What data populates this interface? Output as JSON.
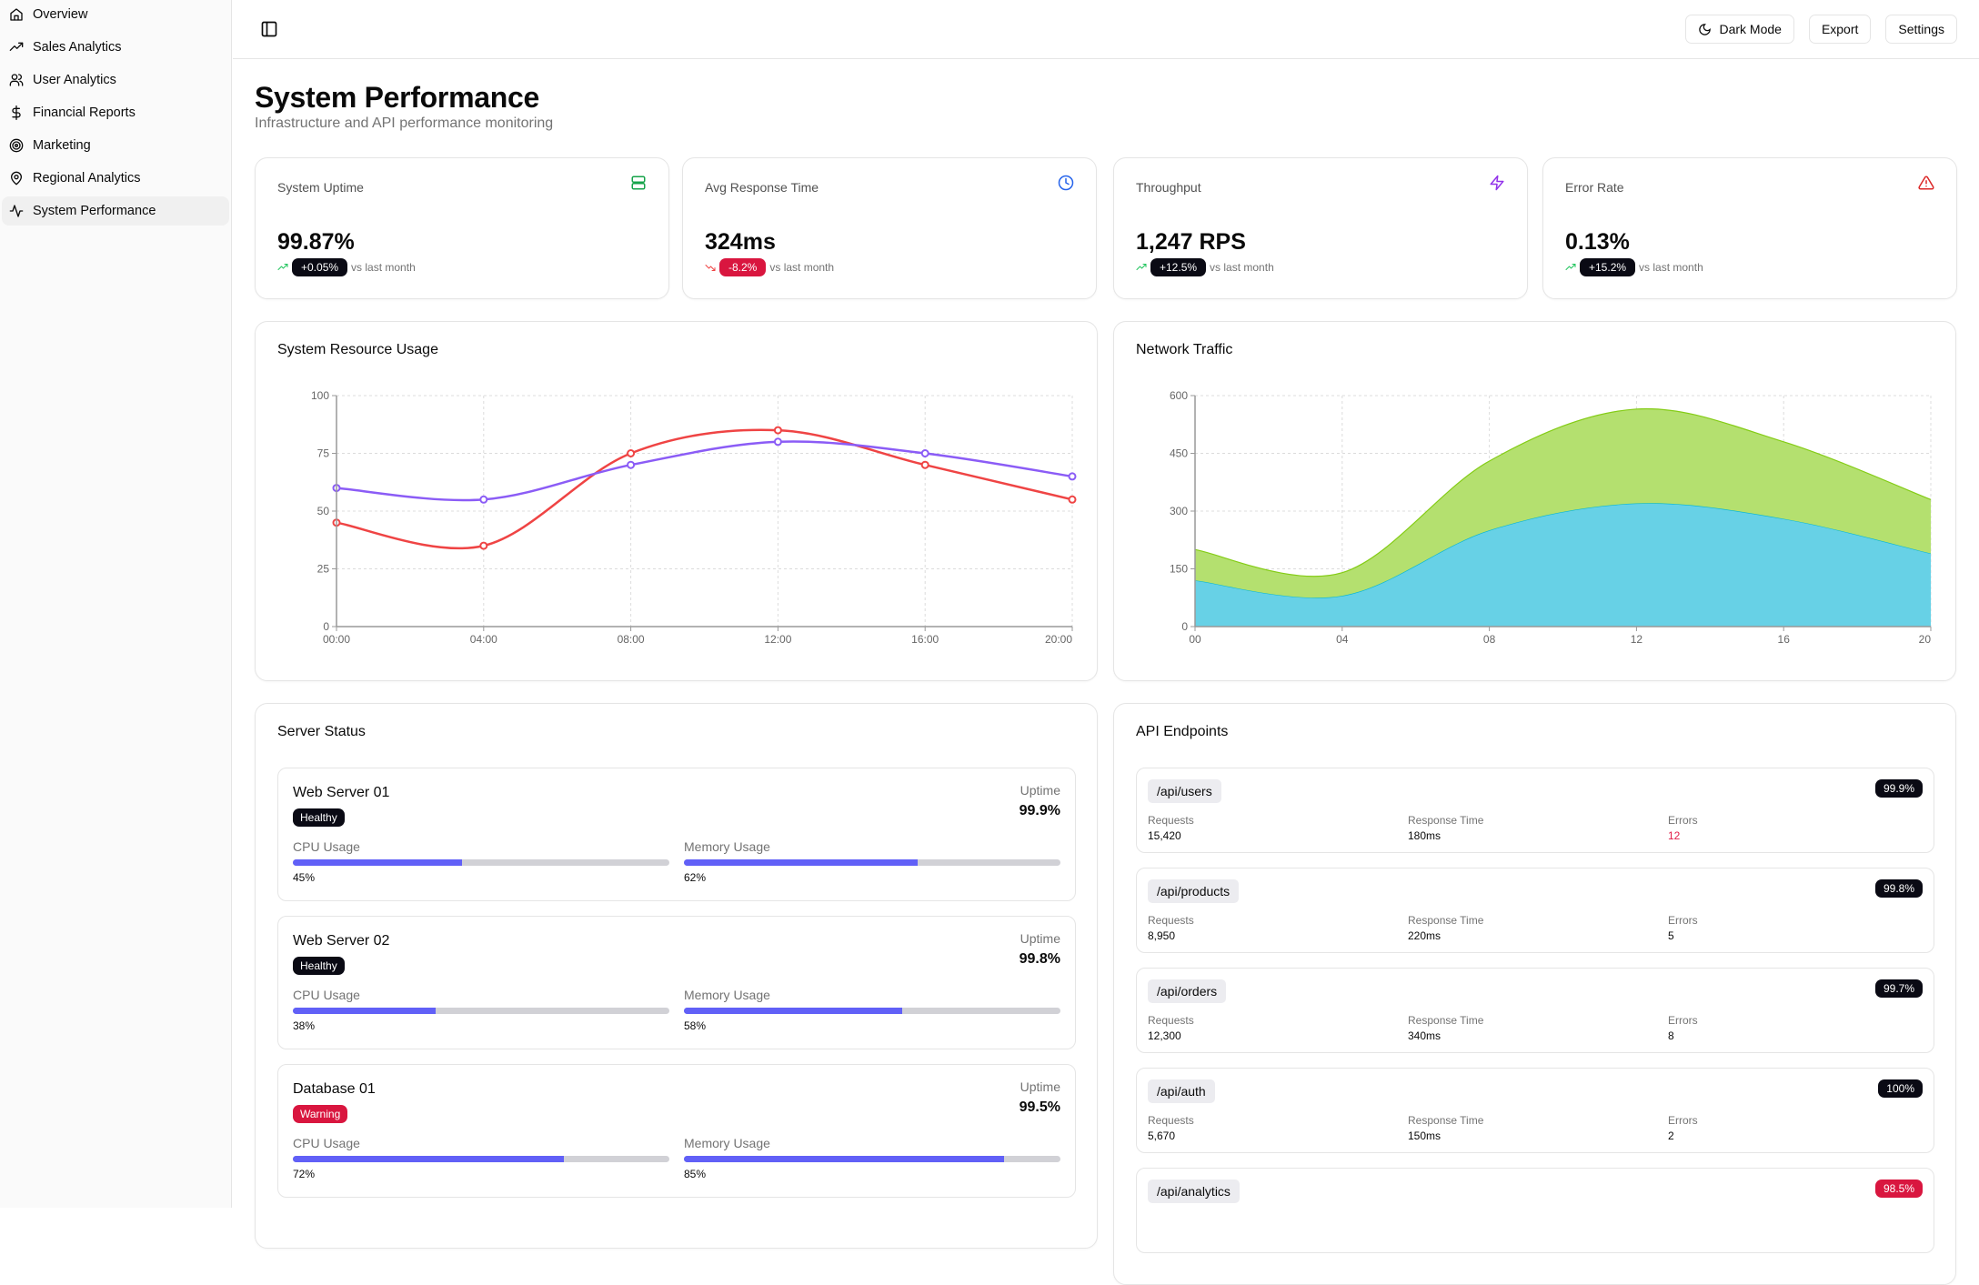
{
  "sidebar": {
    "items": [
      {
        "label": "Overview",
        "icon": "home-icon"
      },
      {
        "label": "Sales Analytics",
        "icon": "trending-up-icon"
      },
      {
        "label": "User Analytics",
        "icon": "users-icon"
      },
      {
        "label": "Financial Reports",
        "icon": "dollar-icon"
      },
      {
        "label": "Marketing",
        "icon": "target-icon"
      },
      {
        "label": "Regional Analytics",
        "icon": "map-pin-icon"
      },
      {
        "label": "System Performance",
        "icon": "activity-icon",
        "active": true
      }
    ]
  },
  "header": {
    "dark_mode": "Dark Mode",
    "export": "Export",
    "settings": "Settings"
  },
  "page": {
    "title": "System Performance",
    "subtitle": "Infrastructure and API performance monitoring"
  },
  "kpis": [
    {
      "label": "System Uptime",
      "value": "99.87%",
      "change": "+0.05%",
      "direction": "up",
      "suffix": "vs last month",
      "icon": "server-icon",
      "icon_color": "#16a34a"
    },
    {
      "label": "Avg Response Time",
      "value": "324ms",
      "change": "-8.2%",
      "direction": "down",
      "suffix": "vs last month",
      "icon": "clock-icon",
      "icon_color": "#2563eb"
    },
    {
      "label": "Throughput",
      "value": "1,247 RPS",
      "change": "+12.5%",
      "direction": "up",
      "suffix": "vs last month",
      "icon": "zap-icon",
      "icon_color": "#9333ea"
    },
    {
      "label": "Error Rate",
      "value": "0.13%",
      "change": "+15.2%",
      "direction": "up",
      "suffix": "vs last month",
      "icon": "alert-triangle-icon",
      "icon_color": "#dc2626"
    }
  ],
  "chart_data": [
    {
      "type": "line",
      "title": "System Resource Usage",
      "categories": [
        "00:00",
        "04:00",
        "08:00",
        "12:00",
        "16:00",
        "20:00"
      ],
      "ylim": [
        0,
        100
      ],
      "yticks": [
        0,
        25,
        50,
        75,
        100
      ],
      "grid": true,
      "series": [
        {
          "values": [
            45,
            35,
            75,
            85,
            70,
            55
          ],
          "color": "#ef4444"
        },
        {
          "values": [
            60,
            55,
            70,
            80,
            75,
            65
          ],
          "color": "#8b5cf6"
        }
      ]
    },
    {
      "type": "area",
      "stacked": true,
      "title": "Network Traffic",
      "categories": [
        "00",
        "04",
        "08",
        "12",
        "16",
        "20"
      ],
      "ylim": [
        0,
        600
      ],
      "yticks": [
        0,
        150,
        300,
        450,
        600
      ],
      "grid": true,
      "series": [
        {
          "values": [
            120,
            80,
            250,
            320,
            280,
            190
          ],
          "color": "#67d1e6"
        },
        {
          "values": [
            80,
            60,
            180,
            245,
            200,
            140
          ],
          "color": "#b4e06f"
        }
      ]
    }
  ],
  "servers": {
    "title": "Server Status",
    "uptime_label": "Uptime",
    "cpu_label": "CPU Usage",
    "mem_label": "Memory Usage",
    "items": [
      {
        "name": "Web Server 01",
        "status": "Healthy",
        "uptime": "99.9%",
        "cpu": 45,
        "cpu_text": "45%",
        "mem": 62,
        "mem_text": "62%"
      },
      {
        "name": "Web Server 02",
        "status": "Healthy",
        "uptime": "99.8%",
        "cpu": 38,
        "cpu_text": "38%",
        "mem": 58,
        "mem_text": "58%"
      },
      {
        "name": "Database 01",
        "status": "Warning",
        "uptime": "99.5%",
        "cpu": 72,
        "cpu_text": "72%",
        "mem": 85,
        "mem_text": "85%"
      }
    ]
  },
  "api": {
    "title": "API Endpoints",
    "req_label": "Requests",
    "rt_label": "Response Time",
    "err_label": "Errors",
    "items": [
      {
        "path": "/api/users",
        "uptime": "99.9%",
        "requests": "15,420",
        "response": "180ms",
        "errors": "12",
        "errors_highlight": true
      },
      {
        "path": "/api/products",
        "uptime": "99.8%",
        "requests": "8,950",
        "response": "220ms",
        "errors": "5"
      },
      {
        "path": "/api/orders",
        "uptime": "99.7%",
        "requests": "12,300",
        "response": "340ms",
        "errors": "8"
      },
      {
        "path": "/api/auth",
        "uptime": "100%",
        "requests": "5,670",
        "response": "150ms",
        "errors": "2"
      },
      {
        "path": "/api/analytics",
        "uptime": "98.5%",
        "uptime_warn": true
      }
    ]
  }
}
